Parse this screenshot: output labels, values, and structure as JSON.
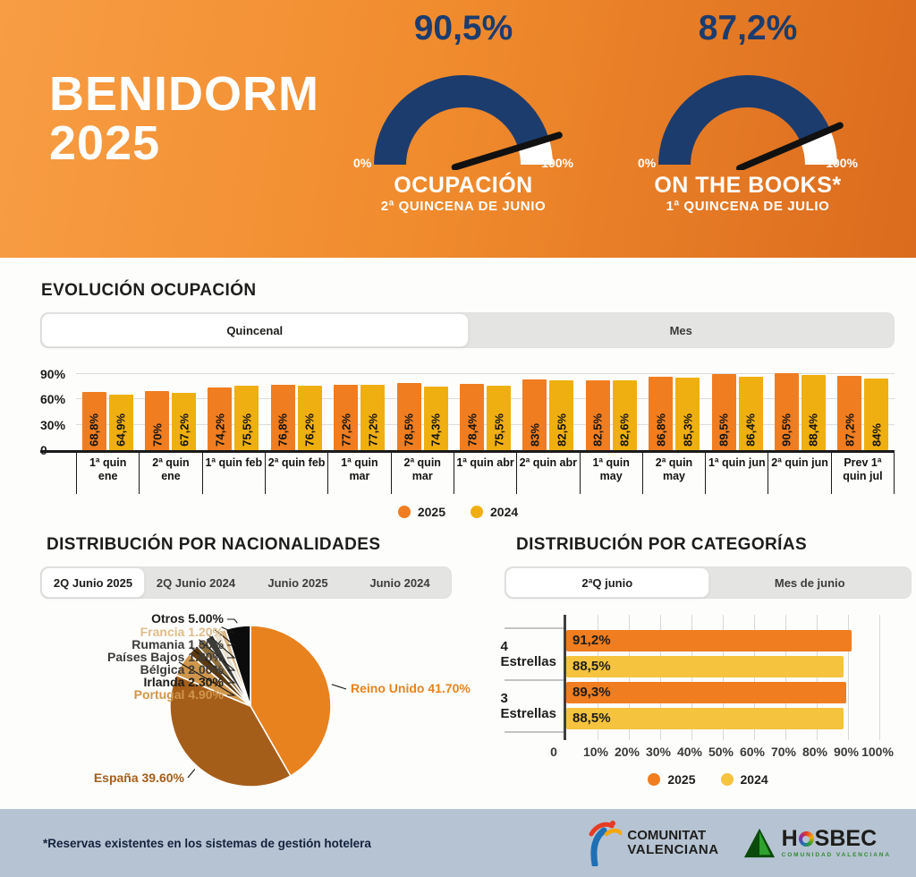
{
  "colors": {
    "navy": "#1C3C6E",
    "orange_2025": "#F07D20",
    "yellow_2024": "#EFAF10",
    "yellow_2024_categories": "#F5C33E",
    "header_gradient_start": "#F89D44",
    "header_gradient_end": "#DB6B1E",
    "footer_bg": "#B6C3D2"
  },
  "header": {
    "title_line1": "BENIDORM",
    "title_line2": "2025"
  },
  "evolution": {
    "title": "EVOLUCIÓN OCUPACIÓN",
    "tabs": [
      {
        "label": "Quincenal",
        "active": true
      },
      {
        "label": "Mes",
        "active": false
      }
    ],
    "legend": [
      {
        "label": "2025",
        "color": "#F07D20"
      },
      {
        "label": "2024",
        "color": "#EFAF10"
      }
    ]
  },
  "nationalities": {
    "title": "DISTRIBUCIÓN POR NACIONALIDADES",
    "tabs": [
      {
        "label": "2Q Junio 2025",
        "active": true
      },
      {
        "label": "2Q Junio 2024",
        "active": false
      },
      {
        "label": "Junio 2025",
        "active": false
      },
      {
        "label": "Junio 2024",
        "active": false
      }
    ]
  },
  "categories": {
    "title": "DISTRIBUCIÓN POR CATEGORÍAS",
    "tabs": [
      {
        "label": "2ªQ junio",
        "active": true
      },
      {
        "label": "Mes de junio",
        "active": false
      }
    ],
    "legend": [
      {
        "label": "2025",
        "color": "#F07D20"
      },
      {
        "label": "2024",
        "color": "#F5C33E"
      }
    ]
  },
  "chart_data": [
    {
      "id": "gauges",
      "type": "gauge",
      "items": [
        {
          "value": 90.5,
          "value_label": "90,5%",
          "min_label": "0%",
          "max_label": "100%",
          "title": "OCUPACIÓN",
          "subtitle": "2ª QUINCENA DE JUNIO",
          "arc_color": "#1C3C6E",
          "rest_color": "#FFFFFF",
          "needle_color": "#111111"
        },
        {
          "value": 87.2,
          "value_label": "87,2%",
          "min_label": "0%",
          "max_label": "100%",
          "title": "ON THE BOOKS*",
          "subtitle": "1ª QUINCENA DE JULIO",
          "arc_color": "#1C3C6E",
          "rest_color": "#FFFFFF",
          "needle_color": "#111111"
        }
      ]
    },
    {
      "id": "evolution",
      "type": "bar",
      "title": "EVOLUCIÓN OCUPACIÓN",
      "categories": [
        "1ª quin ene",
        "2ª quin ene",
        "1ª quin feb",
        "2ª quin feb",
        "1ª quin mar",
        "2ª quin mar",
        "1ª quin abr",
        "2ª quin abr",
        "1ª quin may",
        "2ª quin may",
        "1ª quin jun",
        "2ª quin jun",
        "Prev 1ª quin jul"
      ],
      "series": [
        {
          "name": "2025",
          "color": "#F07D20",
          "values": [
            68.8,
            70,
            74.2,
            76.8,
            77.2,
            78.5,
            78.4,
            83,
            82.5,
            86.8,
            89.5,
            90.5,
            87.2
          ],
          "labels": [
            "68,8%",
            "70%",
            "74,2%",
            "76,8%",
            "77,2%",
            "78,5%",
            "78,4%",
            "83%",
            "82,5%",
            "86,8%",
            "89,5%",
            "90,5%",
            "87,2%"
          ]
        },
        {
          "name": "2024",
          "color": "#EFAF10",
          "values": [
            64.9,
            67.2,
            75.5,
            76.2,
            77.2,
            74.3,
            75.5,
            82.5,
            82.6,
            85.3,
            86.4,
            88.4,
            84
          ],
          "labels": [
            "64,9%",
            "67,2%",
            "75,5%",
            "76,2%",
            "77,2%",
            "74,3%",
            "75,5%",
            "82,5%",
            "82,6%",
            "85,3%",
            "86,4%",
            "88,4%",
            "84%"
          ]
        }
      ],
      "yticks": [
        {
          "label": "90%",
          "value": 90
        },
        {
          "label": "60%",
          "value": 60
        },
        {
          "label": "30%",
          "value": 30
        },
        {
          "label": "0",
          "value": 0
        }
      ],
      "gridline_values": [
        30,
        60,
        90
      ],
      "ylim": [
        0,
        100
      ],
      "legend_position": "bottom-center"
    },
    {
      "id": "nationalities",
      "type": "pie",
      "title": "DISTRIBUCIÓN POR NACIONALIDADES",
      "slices": [
        {
          "label": "Reino Unido",
          "pct": 41.7,
          "text": "Reino Unido 41.70%",
          "color": "#E8821E",
          "label_color": "#E8821E"
        },
        {
          "label": "España",
          "pct": 39.6,
          "text": "España 39.60%",
          "color": "#A55E1A",
          "label_color": "#A55E1A"
        },
        {
          "label": "Portugal",
          "pct": 4.9,
          "text": "Portugal 4.90%",
          "color": "#D0964B",
          "label_color": "#D0964B"
        },
        {
          "label": "Irlanda",
          "pct": 2.3,
          "text": "Irlanda 2.30%",
          "color": "#5C3A10",
          "label_color": "#1d1d1b"
        },
        {
          "label": "Bélgica",
          "pct": 2.0,
          "text": "Bélgica 2.00%",
          "color": "#8F7140",
          "label_color": "#3c3c3a"
        },
        {
          "label": "Países Bajos",
          "pct": 1.8,
          "text": "Países Bajos 1.80%",
          "color": "#3D3B36",
          "label_color": "#3c3c3a"
        },
        {
          "label": "Rumania",
          "pct": 1.5,
          "text": "Rumania 1.50%",
          "color": "#E8E0D0",
          "label_color": "#3c3c3a"
        },
        {
          "label": "Francia",
          "pct": 1.2,
          "text": "Francia 1.20%",
          "color": "#D9B887",
          "label_color": "#E0BE8D"
        },
        {
          "label": "Otros",
          "pct": 5.0,
          "text": "Otros 5.00%",
          "color": "#0C0C0C",
          "label_color": "#1d1d1b"
        }
      ]
    },
    {
      "id": "categories",
      "type": "bar",
      "orientation": "horizontal",
      "title": "DISTRIBUCIÓN POR CATEGORÍAS",
      "categories": [
        "4 Estrellas",
        "3 Estrellas"
      ],
      "series": [
        {
          "name": "2025",
          "color": "#F07D20",
          "values": [
            91.2,
            89.3
          ],
          "labels": [
            "91,2%",
            "89,3%"
          ]
        },
        {
          "name": "2024",
          "color": "#F5C33E",
          "values": [
            88.5,
            88.5
          ],
          "labels": [
            "88,5%",
            "88,5%"
          ]
        }
      ],
      "xticks": [
        {
          "label": "0",
          "value": 0
        },
        {
          "label": "10%",
          "value": 10
        },
        {
          "label": "20%",
          "value": 20
        },
        {
          "label": "30%",
          "value": 30
        },
        {
          "label": "40%",
          "value": 40
        },
        {
          "label": "50%",
          "value": 50
        },
        {
          "label": "60%",
          "value": 60
        },
        {
          "label": "70%",
          "value": 70
        },
        {
          "label": "80%",
          "value": 80
        },
        {
          "label": "90%",
          "value": 90
        },
        {
          "label": "100%",
          "value": 100
        }
      ],
      "xlim": [
        0,
        100
      ]
    }
  ],
  "footer": {
    "note": "*Reservas existentes en los sistemas de gestión hotelera",
    "logos": [
      {
        "name": "Comunitat Valenciana",
        "line1": "COMUNITAT",
        "line2": "VALENCIANA"
      },
      {
        "name": "HOSBEC",
        "text": "HOSBEC",
        "text_h": "H",
        "text_rest": "SBEC",
        "subtext": "COMUNIDAD VALENCIANA"
      }
    ]
  }
}
